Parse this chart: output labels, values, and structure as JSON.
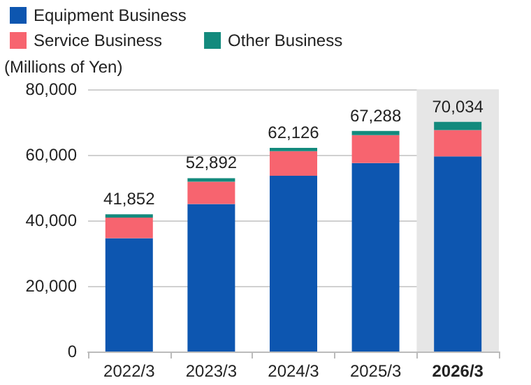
{
  "chart_data": {
    "type": "bar",
    "stacked": true,
    "ylabel": "(Millions of Yen)",
    "categories": [
      "2022/3",
      "2023/3",
      "2024/3",
      "2025/3",
      "2026/3"
    ],
    "series": [
      {
        "name": "Equipment Business",
        "color": "#0d56b0",
        "values": [
          34552,
          44992,
          53626,
          57488,
          59534
        ]
      },
      {
        "name": "Service Business",
        "color": "#f7646f",
        "values": [
          6300,
          6800,
          7500,
          8500,
          8000
        ]
      },
      {
        "name": "Other Business",
        "color": "#138a7d",
        "values": [
          1000,
          1100,
          1000,
          1300,
          2500
        ]
      }
    ],
    "totals": [
      "41,852",
      "52,892",
      "62,126",
      "67,288",
      "70,034"
    ],
    "ylim": [
      0,
      80000
    ],
    "yticks": [
      {
        "value": 0,
        "label": "0"
      },
      {
        "value": 20000,
        "label": "20,000"
      },
      {
        "value": 40000,
        "label": "40,000"
      },
      {
        "value": 60000,
        "label": "60,000"
      },
      {
        "value": 80000,
        "label": "80,000"
      }
    ],
    "bands": [
      {
        "axis": "x",
        "from": "2026/3",
        "to": "2026/3",
        "color": "#e6e6e6"
      }
    ],
    "grid": "y",
    "legend": "top left"
  }
}
